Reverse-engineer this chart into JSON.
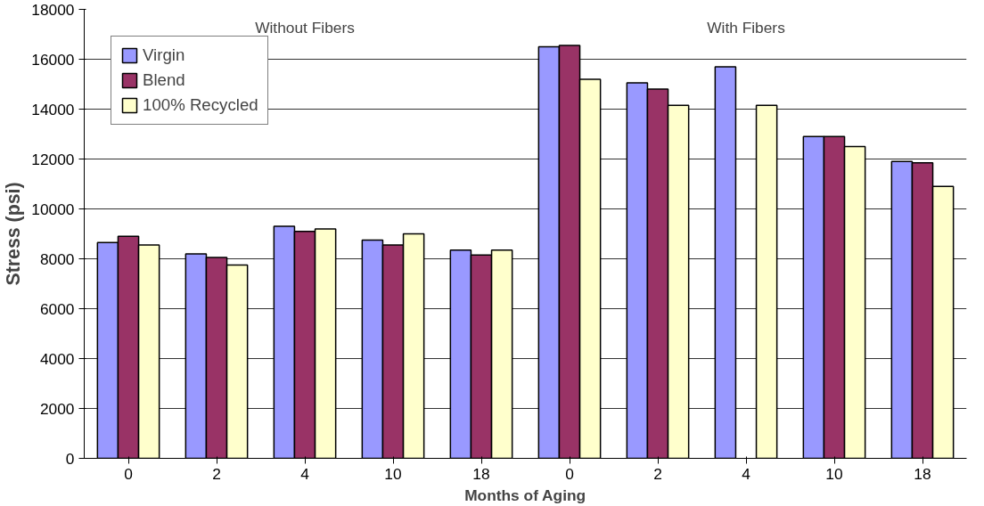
{
  "chart_data": {
    "type": "bar",
    "xlabel": "Months of Aging",
    "ylabel": "Stress (psi)",
    "categories": [
      "0",
      "2",
      "4",
      "10",
      "18",
      "0",
      "2",
      "4",
      "10",
      "18"
    ],
    "series": [
      {
        "name": "Virgin",
        "color": "#9999ff",
        "values": [
          8650,
          8200,
          9300,
          8750,
          8350,
          16500,
          15050,
          15700,
          12900,
          11900
        ]
      },
      {
        "name": "Blend",
        "color": "#993366",
        "values": [
          8900,
          8050,
          9100,
          8550,
          8150,
          16550,
          14800,
          null,
          12900,
          11850
        ]
      },
      {
        "name": "100% Recycled",
        "color": "#ffffcc",
        "values": [
          8550,
          7750,
          9200,
          9000,
          8350,
          15200,
          14150,
          14150,
          12500,
          10900
        ]
      }
    ],
    "annotations": [
      "Without Fibers",
      "With Fibers"
    ],
    "ylim": [
      0,
      18000
    ],
    "yticks": [
      0,
      2000,
      4000,
      6000,
      8000,
      10000,
      12000,
      14000,
      16000,
      18000
    ],
    "grid": "y",
    "legend": "top left"
  }
}
